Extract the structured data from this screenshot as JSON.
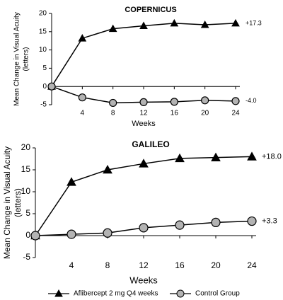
{
  "chart_data": [
    {
      "type": "line",
      "title": "COPERNICUS",
      "xlabel": "Weeks",
      "ylabel": [
        "Mean Change in Visual Acuity",
        "(letters)"
      ],
      "x": [
        0,
        4,
        8,
        12,
        16,
        20,
        24
      ],
      "xlim": [
        0,
        24
      ],
      "xticks": [
        4,
        8,
        12,
        16,
        20,
        24
      ],
      "ylim": [
        -5,
        20
      ],
      "yticks": [
        -5,
        0,
        5,
        10,
        15,
        20
      ],
      "series": [
        {
          "color": "#000000",
          "marker": "triangle",
          "values": [
            0,
            13.2,
            15.8,
            16.6,
            17.3,
            16.9,
            17.3
          ],
          "value_labels": [
            null,
            null,
            null,
            null,
            null,
            null,
            "+17.3"
          ]
        },
        {
          "color": "#b3b3b3",
          "marker": "circle",
          "values": [
            0,
            -3.0,
            -4.5,
            -4.3,
            -4.2,
            -3.8,
            -4.0
          ],
          "value_labels": [
            null,
            null,
            null,
            null,
            null,
            null,
            "-4.0"
          ]
        }
      ]
    },
    {
      "type": "line",
      "title": "GALILEO",
      "xlabel": "Weeks",
      "ylabel": [
        "Mean Change in Visual Acuity",
        "(letters)"
      ],
      "x": [
        0,
        4,
        8,
        12,
        16,
        20,
        24
      ],
      "xlim": [
        0,
        24
      ],
      "xticks": [
        4,
        8,
        12,
        16,
        20,
        24
      ],
      "ylim": [
        -5,
        20
      ],
      "yticks": [
        -5,
        0,
        5,
        10,
        15,
        20
      ],
      "series": [
        {
          "name": "Aflibercept 2 mg Q4 weeks",
          "color": "#000000",
          "marker": "triangle",
          "values": [
            0,
            12.2,
            15.0,
            16.4,
            17.6,
            17.8,
            18.0
          ],
          "value_labels": [
            null,
            null,
            null,
            null,
            null,
            null,
            "+18.0"
          ]
        },
        {
          "name": "Control Group",
          "color": "#b3b3b3",
          "marker": "circle",
          "values": [
            0,
            0.3,
            0.6,
            1.8,
            2.4,
            3.0,
            3.3
          ],
          "value_labels": [
            null,
            null,
            null,
            null,
            null,
            null,
            "+3.3"
          ]
        }
      ]
    }
  ]
}
